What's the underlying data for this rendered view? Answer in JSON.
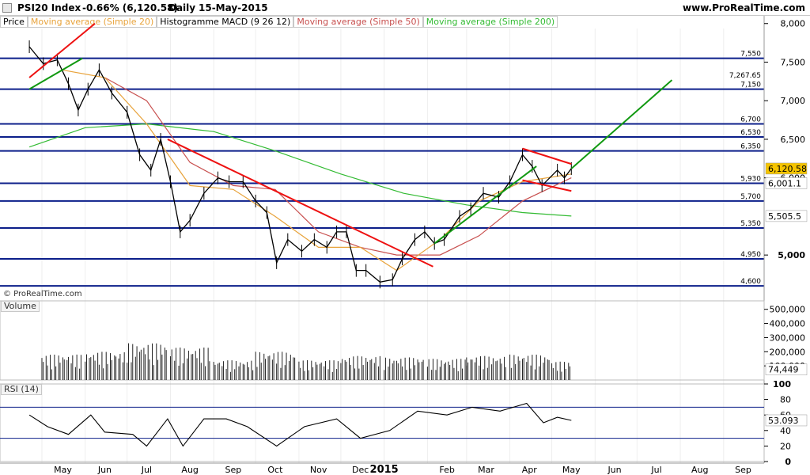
{
  "header": {
    "instrument": "PSI20 Index",
    "change": "-0.66% (6,120.58)",
    "period": "Daily",
    "date": "15-May-2015",
    "site": "www.ProRealTime.com"
  },
  "tabs": [
    {
      "label": "Price",
      "color": "#000000"
    },
    {
      "label": "Moving average (Simple 20)",
      "color": "#e8a33b"
    },
    {
      "label": "Histogramme MACD (9 26 12)",
      "color": "#000000"
    },
    {
      "label": "Moving average (Simple 50)",
      "color": "#c8504f"
    },
    {
      "label": "Moving average (Simple 200)",
      "color": "#33bb33"
    }
  ],
  "copyright": "© ProRealTime.com",
  "volume_title": "Volume",
  "rsi_title": "RSI (14)",
  "chart_data": {
    "type": "line",
    "price_axis": {
      "ylim": [
        4550,
        8100
      ],
      "ticks": [
        "8,000",
        "7,500",
        "7,000",
        "6,500",
        "6,000",
        "5,000"
      ]
    },
    "levels": [
      {
        "value": 7550,
        "label": "7,550"
      },
      {
        "value": 7267.65,
        "label": "7,267.65"
      },
      {
        "value": 7150,
        "label": "7,150"
      },
      {
        "value": 6700,
        "label": "6,700"
      },
      {
        "value": 6530,
        "label": "6,530"
      },
      {
        "value": 6350,
        "label": "6,350"
      },
      {
        "value": 5930,
        "label": "5,930"
      },
      {
        "value": 5700,
        "label": "5,700"
      },
      {
        "value": 5350,
        "label": "5,350"
      },
      {
        "value": 4950,
        "label": "4,950"
      },
      {
        "value": 4600,
        "label": "4,600"
      }
    ],
    "last_values": {
      "price": {
        "label": "6,120.58",
        "value": 6120.58,
        "color": "#f5c400"
      },
      "ma50": {
        "label": "6,001.1",
        "value": 6001.1,
        "color": "#c8504f"
      },
      "ma200": {
        "label": "5,505.5",
        "value": 5505.5,
        "color": "#33bb33"
      }
    },
    "x_labels": [
      "May",
      "Jun",
      "Jul",
      "Aug",
      "Sep",
      "Oct",
      "Nov",
      "Dec",
      "2015",
      "Feb",
      "Mar",
      "Apr",
      "May",
      "Jun",
      "Jul",
      "Aug",
      "Sep"
    ],
    "price": [
      [
        "2014-04-22",
        7700
      ],
      [
        "2014-05-02",
        7480
      ],
      [
        "2014-05-12",
        7530
      ],
      [
        "2014-05-20",
        7220
      ],
      [
        "2014-05-27",
        6880
      ],
      [
        "2014-06-03",
        7150
      ],
      [
        "2014-06-11",
        7400
      ],
      [
        "2014-06-20",
        7100
      ],
      [
        "2014-07-01",
        6850
      ],
      [
        "2014-07-10",
        6300
      ],
      [
        "2014-07-18",
        6100
      ],
      [
        "2014-07-25",
        6500
      ],
      [
        "2014-08-01",
        5950
      ],
      [
        "2014-08-08",
        5300
      ],
      [
        "2014-08-15",
        5450
      ],
      [
        "2014-08-25",
        5800
      ],
      [
        "2014-09-04",
        6000
      ],
      [
        "2014-09-12",
        5950
      ],
      [
        "2014-09-22",
        5950
      ],
      [
        "2014-10-01",
        5700
      ],
      [
        "2014-10-09",
        5550
      ],
      [
        "2014-10-16",
        4900
      ],
      [
        "2014-10-24",
        5200
      ],
      [
        "2014-11-03",
        5050
      ],
      [
        "2014-11-12",
        5200
      ],
      [
        "2014-11-21",
        5100
      ],
      [
        "2014-11-28",
        5300
      ],
      [
        "2014-12-05",
        5300
      ],
      [
        "2014-12-12",
        4800
      ],
      [
        "2014-12-19",
        4800
      ],
      [
        "2014-12-29",
        4650
      ],
      [
        "2015-01-07",
        4680
      ],
      [
        "2015-01-14",
        4950
      ],
      [
        "2015-01-23",
        5200
      ],
      [
        "2015-01-30",
        5300
      ],
      [
        "2015-02-06",
        5150
      ],
      [
        "2015-02-13",
        5200
      ],
      [
        "2015-02-24",
        5500
      ],
      [
        "2015-03-04",
        5600
      ],
      [
        "2015-03-13",
        5800
      ],
      [
        "2015-03-24",
        5750
      ],
      [
        "2015-04-01",
        5950
      ],
      [
        "2015-04-10",
        6300
      ],
      [
        "2015-04-17",
        6150
      ],
      [
        "2015-04-24",
        5900
      ],
      [
        "2015-05-05",
        6100
      ],
      [
        "2015-05-10",
        6000
      ],
      [
        "2015-05-15",
        6120.58
      ]
    ],
    "ma20": [
      [
        "2014-05-15",
        7400
      ],
      [
        "2014-06-15",
        7300
      ],
      [
        "2014-07-15",
        6700
      ],
      [
        "2014-08-15",
        5900
      ],
      [
        "2014-09-15",
        5850
      ],
      [
        "2014-10-15",
        5500
      ],
      [
        "2014-11-15",
        5100
      ],
      [
        "2014-12-15",
        5100
      ],
      [
        "2015-01-10",
        4800
      ],
      [
        "2015-02-10",
        5200
      ],
      [
        "2015-03-10",
        5700
      ],
      [
        "2015-04-10",
        5950
      ],
      [
        "2015-05-15",
        6050
      ]
    ],
    "ma50": [
      [
        "2014-06-15",
        7300
      ],
      [
        "2014-07-15",
        7000
      ],
      [
        "2014-08-15",
        6200
      ],
      [
        "2014-09-15",
        5900
      ],
      [
        "2014-10-15",
        5850
      ],
      [
        "2014-11-15",
        5300
      ],
      [
        "2014-12-15",
        5100
      ],
      [
        "2015-01-10",
        5000
      ],
      [
        "2015-02-10",
        5000
      ],
      [
        "2015-03-10",
        5250
      ],
      [
        "2015-04-10",
        5700
      ],
      [
        "2015-05-15",
        6001.1
      ]
    ],
    "ma200": [
      [
        "2014-04-22",
        6400
      ],
      [
        "2014-06-01",
        6650
      ],
      [
        "2014-07-15",
        6700
      ],
      [
        "2014-09-01",
        6600
      ],
      [
        "2014-10-15",
        6350
      ],
      [
        "2014-12-01",
        6050
      ],
      [
        "2015-01-15",
        5800
      ],
      [
        "2015-03-01",
        5650
      ],
      [
        "2015-04-10",
        5550
      ],
      [
        "2015-05-15",
        5505.5
      ]
    ],
    "trendlines": [
      {
        "color": "#ee1111",
        "points": [
          [
            "2014-04-22",
            7300
          ],
          [
            "2014-06-08",
            8000
          ]
        ]
      },
      {
        "color": "#ee1111",
        "points": [
          [
            "2014-07-30",
            6500
          ],
          [
            "2015-02-05",
            4850
          ]
        ]
      },
      {
        "color": "#ee1111",
        "points": [
          [
            "2015-04-10",
            6380
          ],
          [
            "2015-05-15",
            6180
          ]
        ]
      },
      {
        "color": "#ee1111",
        "points": [
          [
            "2015-04-10",
            5970
          ],
          [
            "2015-05-15",
            5830
          ]
        ]
      },
      {
        "color": "#119911",
        "points": [
          [
            "2014-04-22",
            7150
          ],
          [
            "2014-05-30",
            7550
          ]
        ]
      },
      {
        "color": "#119911",
        "points": [
          [
            "2015-02-06",
            5150
          ],
          [
            "2015-04-20",
            6150
          ]
        ]
      },
      {
        "color": "#119911",
        "points": [
          [
            "2015-05-15",
            6120
          ],
          [
            "2015-07-26",
            7267.65
          ]
        ]
      }
    ],
    "volume_axis": {
      "ylim": [
        0,
        560000
      ],
      "ticks": [
        "500,000",
        "400,000",
        "300,000",
        "200,000",
        "100,000"
      ]
    },
    "volume_last": {
      "label": "74,449",
      "value": 74449
    },
    "volume": [
      [
        "2014-05",
        180000
      ],
      [
        "2014-06",
        200000
      ],
      [
        "2014-07",
        260000
      ],
      [
        "2014-08",
        230000
      ],
      [
        "2014-09",
        140000
      ],
      [
        "2014-10",
        200000
      ],
      [
        "2014-11",
        140000
      ],
      [
        "2014-12",
        170000
      ],
      [
        "2015-01",
        160000
      ],
      [
        "2015-02",
        150000
      ],
      [
        "2015-03",
        170000
      ],
      [
        "2015-04",
        180000
      ],
      [
        "2015-05",
        130000
      ]
    ],
    "rsi_axis": {
      "ylim": [
        0,
        100
      ],
      "ticks": [
        "100",
        "80",
        "60",
        "40",
        "20",
        "0"
      ],
      "bands": [
        70,
        30
      ]
    },
    "rsi_last": {
      "label": "53.093",
      "value": 53.093
    },
    "rsi": [
      [
        "2014-04-22",
        60
      ],
      [
        "2014-05-05",
        45
      ],
      [
        "2014-05-20",
        35
      ],
      [
        "2014-06-05",
        60
      ],
      [
        "2014-06-15",
        38
      ],
      [
        "2014-07-05",
        35
      ],
      [
        "2014-07-15",
        20
      ],
      [
        "2014-07-30",
        55
      ],
      [
        "2014-08-10",
        20
      ],
      [
        "2014-08-25",
        55
      ],
      [
        "2014-09-10",
        55
      ],
      [
        "2014-09-25",
        45
      ],
      [
        "2014-10-16",
        20
      ],
      [
        "2014-11-05",
        45
      ],
      [
        "2014-11-28",
        55
      ],
      [
        "2014-12-15",
        30
      ],
      [
        "2015-01-05",
        40
      ],
      [
        "2015-01-25",
        65
      ],
      [
        "2015-02-15",
        60
      ],
      [
        "2015-03-05",
        70
      ],
      [
        "2015-03-25",
        65
      ],
      [
        "2015-04-13",
        75
      ],
      [
        "2015-04-25",
        50
      ],
      [
        "2015-05-05",
        57
      ],
      [
        "2015-05-15",
        53.093
      ]
    ]
  }
}
